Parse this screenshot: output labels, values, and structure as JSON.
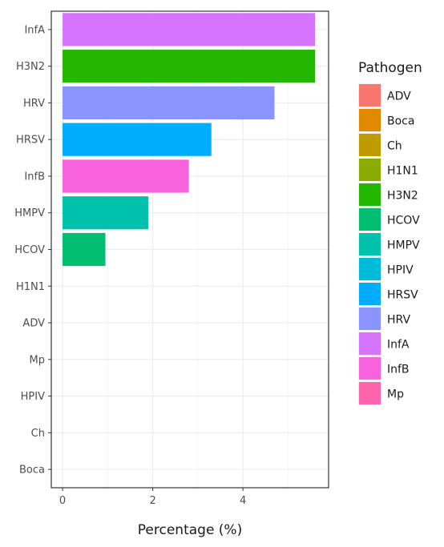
{
  "chart_data": {
    "type": "bar",
    "orientation": "horizontal",
    "title": "",
    "xlabel": "Percentage (%)",
    "ylabel": "",
    "xlim": [
      -0.25,
      5.9
    ],
    "x_ticks": [
      0,
      2,
      4
    ],
    "grid": true,
    "legend_position": "right",
    "categories": [
      "InfA",
      "H3N2",
      "HRV",
      "HRSV",
      "InfB",
      "HMPV",
      "HCOV",
      "H1N1",
      "ADV",
      "Mp",
      "HPIV",
      "Ch",
      "Boca"
    ],
    "values": [
      5.6,
      5.6,
      4.7,
      3.3,
      2.8,
      1.9,
      0.95,
      0,
      0,
      0,
      0,
      0,
      0
    ],
    "legend_title": "Pathogen",
    "legend_entries": [
      "ADV",
      "Boca",
      "Ch",
      "H1N1",
      "H3N2",
      "HCOV",
      "HMPV",
      "HPIV",
      "HRSV",
      "HRV",
      "InfA",
      "InfB",
      "Mp"
    ],
    "colors": {
      "ADV": "#F8766D",
      "Boca": "#E18A00",
      "Ch": "#BE9C00",
      "H1N1": "#8CAB00",
      "H3N2": "#24B700",
      "HCOV": "#00BE70",
      "HMPV": "#00C1AB",
      "HPIV": "#00BBDA",
      "HRSV": "#00ACFC",
      "HRV": "#8B93FF",
      "InfA": "#D575FE",
      "InfB": "#F962DD",
      "Mp": "#FF65AC"
    }
  }
}
